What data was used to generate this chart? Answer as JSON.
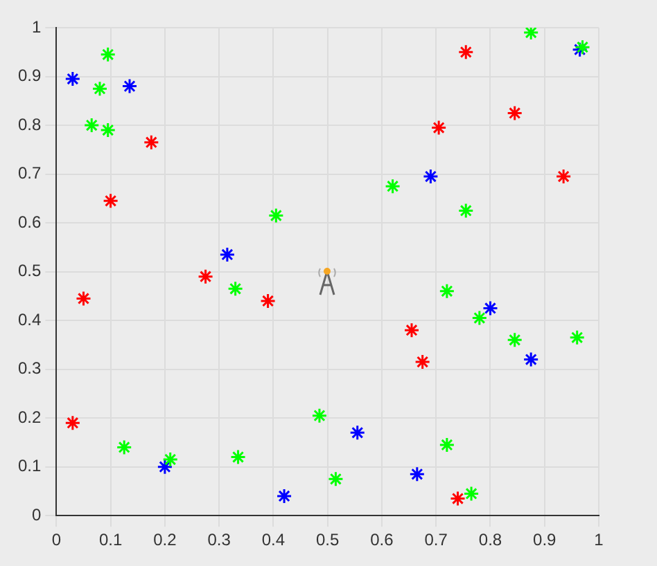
{
  "chart_data": {
    "type": "scatter",
    "xlim": [
      0,
      1
    ],
    "ylim": [
      0,
      1
    ],
    "xticks": [
      0,
      0.1,
      0.2,
      0.3,
      0.4,
      0.5,
      0.6,
      0.7,
      0.8,
      0.9,
      1
    ],
    "yticks": [
      0,
      0.1,
      0.2,
      0.3,
      0.4,
      0.5,
      0.6,
      0.7,
      0.8,
      0.9,
      1
    ],
    "grid": true,
    "legend": false,
    "marker": "cross",
    "series": [
      {
        "color": "#ff0000",
        "x": [
          0.03,
          0.05,
          0.1,
          0.175,
          0.275,
          0.39,
          0.655,
          0.675,
          0.705,
          0.74,
          0.755,
          0.845,
          0.935
        ],
        "values": [
          0.19,
          0.445,
          0.645,
          0.765,
          0.49,
          0.44,
          0.38,
          0.315,
          0.795,
          0.035,
          0.95,
          0.825,
          0.695
        ]
      },
      {
        "color": "#00ff00",
        "x": [
          0.095,
          0.08,
          0.065,
          0.095,
          0.125,
          0.21,
          0.335,
          0.33,
          0.405,
          0.485,
          0.515,
          0.62,
          0.72,
          0.72,
          0.755,
          0.765,
          0.78,
          0.845,
          0.875,
          0.96,
          0.97
        ],
        "values": [
          0.945,
          0.875,
          0.8,
          0.79,
          0.14,
          0.115,
          0.12,
          0.465,
          0.615,
          0.205,
          0.075,
          0.675,
          0.145,
          0.46,
          0.625,
          0.045,
          0.405,
          0.36,
          0.99,
          0.365,
          0.96
        ]
      },
      {
        "color": "#0000ff",
        "x": [
          0.03,
          0.135,
          0.2,
          0.315,
          0.42,
          0.555,
          0.665,
          0.69,
          0.8,
          0.875,
          0.965
        ],
        "values": [
          0.895,
          0.88,
          0.1,
          0.535,
          0.04,
          0.17,
          0.085,
          0.695,
          0.425,
          0.32,
          0.955
        ]
      }
    ]
  }
}
